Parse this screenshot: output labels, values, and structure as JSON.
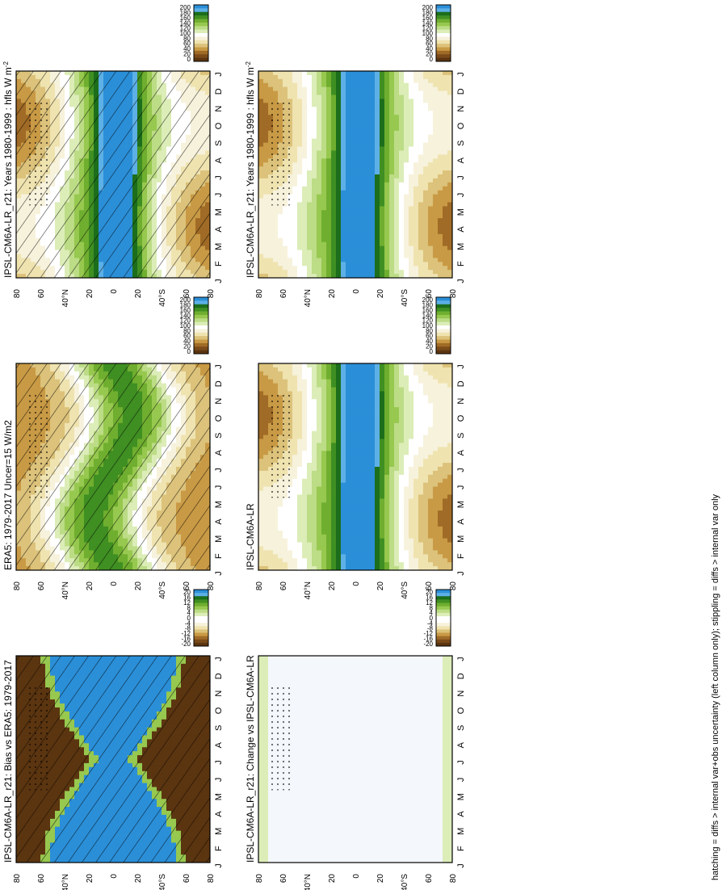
{
  "figure": {
    "footnote": "hatching = diffs > internal var+obs uncertainty (left column only); stippling = diffs > internal var only"
  },
  "chart_data": [
    {
      "type": "heatmap",
      "id": "model",
      "title": "IPSL-CM6A-LR_r21: Years 1980-1999 : hfls W m",
      "title_sup": "-2",
      "x": [
        "J",
        "F",
        "M",
        "A",
        "M",
        "J",
        "J",
        "A",
        "S",
        "O",
        "N",
        "D",
        "J"
      ],
      "x_end_labels": [
        "D",
        "J"
      ],
      "y_ticks": [
        "80",
        "60",
        "40°N",
        "20",
        "0",
        "20",
        "40°S",
        "60",
        "80"
      ],
      "colorbar": {
        "ticks": [
          "200",
          "180",
          "160",
          "140",
          "120",
          "100",
          "80",
          "60",
          "40",
          "20",
          "0"
        ]
      },
      "field": "absolute",
      "hatching": true,
      "stippling": true
    },
    {
      "type": "heatmap",
      "id": "model-ref",
      "title": "IPSL-CM6A-LR_r21: Years 1980-1999 : hfls W m",
      "title_sup": "-2",
      "x": [
        "J",
        "F",
        "M",
        "A",
        "M",
        "J",
        "J",
        "A",
        "S",
        "O",
        "N",
        "D",
        "J"
      ],
      "x_end_labels": [
        "D",
        "J"
      ],
      "y_ticks": [
        "80",
        "60",
        "40°N",
        "20",
        "0",
        "20",
        "40°S",
        "60",
        "80"
      ],
      "colorbar": {
        "ticks": [
          "200",
          "180",
          "160",
          "140",
          "120",
          "100",
          "80",
          "60",
          "40",
          "20",
          "0"
        ]
      },
      "field": "absolute",
      "hatching": false,
      "stippling": true
    },
    {
      "type": "heatmap",
      "id": "obs",
      "title": "ERA5: 1979-2017 Uncer=15 W/m2",
      "x": [
        "J",
        "F",
        "M",
        "A",
        "M",
        "J",
        "J",
        "A",
        "S",
        "O",
        "N",
        "D",
        "J"
      ],
      "x_end_labels": [
        "D",
        "J"
      ],
      "y_ticks": [
        "80",
        "60",
        "40°N",
        "20",
        "0",
        "20",
        "40°S",
        "60",
        "80"
      ],
      "colorbar": {
        "ticks": [
          "200",
          "180",
          "160",
          "140",
          "120",
          "100",
          "80",
          "60",
          "40",
          "20",
          "0"
        ]
      },
      "field": "obs",
      "hatching": true,
      "stippling": true
    },
    {
      "type": "heatmap",
      "id": "cmip-mean",
      "title": "IPSL-CM6A-LR",
      "x": [
        "J",
        "F",
        "M",
        "A",
        "M",
        "J",
        "J",
        "A",
        "S",
        "O",
        "N",
        "D",
        "J"
      ],
      "x_end_labels": [
        "D",
        "J"
      ],
      "y_ticks": [
        "80",
        "60",
        "40°N",
        "20",
        "0",
        "20",
        "40°S",
        "60",
        "80"
      ],
      "colorbar": {
        "ticks": [
          "200",
          "180",
          "160",
          "140",
          "120",
          "100",
          "80",
          "60",
          "40",
          "20",
          "0"
        ]
      },
      "field": "absolute",
      "hatching": false,
      "stippling": true
    },
    {
      "type": "heatmap",
      "id": "bias",
      "title": "IPSL-CM6A-LR_r21: Bias vs ERA5: 1979-2017",
      "x": [
        "J",
        "F",
        "M",
        "A",
        "M",
        "J",
        "J",
        "A",
        "S",
        "O",
        "N",
        "D",
        "J"
      ],
      "x_end_labels": [
        "D",
        "J"
      ],
      "y_ticks": [
        "80",
        "60",
        "40°N",
        "20",
        "0",
        "20",
        "40°S",
        "60",
        "80"
      ],
      "colorbar": {
        "ticks": [
          "20",
          "16",
          "12",
          "8",
          "4",
          "0",
          "-4",
          "-8",
          "-12",
          "-16",
          "-20"
        ]
      },
      "field": "bias",
      "hatching": true,
      "stippling": true
    },
    {
      "type": "heatmap",
      "id": "change",
      "title": "IPSL-CM6A-LR_r21: Change vs IPSL-CM6A-LR",
      "x": [
        "J",
        "F",
        "M",
        "A",
        "M",
        "J",
        "J",
        "A",
        "S",
        "O",
        "N",
        "D",
        "J"
      ],
      "x_end_labels": [
        "D",
        "J"
      ],
      "y_ticks": [
        "80",
        "60",
        "40°N",
        "20",
        "0",
        "20",
        "40°S",
        "60",
        "80"
      ],
      "colorbar": {
        "ticks": [
          "20",
          "16",
          "12",
          "8",
          "4",
          "0",
          "-4",
          "-8",
          "-12",
          "-16",
          "-20"
        ]
      },
      "field": "change",
      "hatching": false,
      "stippling": true
    }
  ],
  "colors": {
    "abs_scale": [
      "#2b8fd8",
      "#5db0e6",
      "#1c6e1c",
      "#3f8f22",
      "#6fae2f",
      "#97c84f",
      "#bcdc86",
      "#dcedb8",
      "#ffffff",
      "#f7f2dc",
      "#efe3b0",
      "#dcc27a",
      "#c99a45",
      "#a06b26",
      "#7a4a1a",
      "#5b3510"
    ],
    "div_scale": [
      "#2b8fd8",
      "#5db0e6",
      "#1c6e1c",
      "#3f8f22",
      "#6fae2f",
      "#97c84f",
      "#bcdc86",
      "#dcedb8",
      "#ffffff",
      "#ffffff",
      "#f7f2dc",
      "#efe3b0",
      "#dcc27a",
      "#c99a45",
      "#a06b26",
      "#7a4a1a",
      "#5b3510"
    ]
  }
}
